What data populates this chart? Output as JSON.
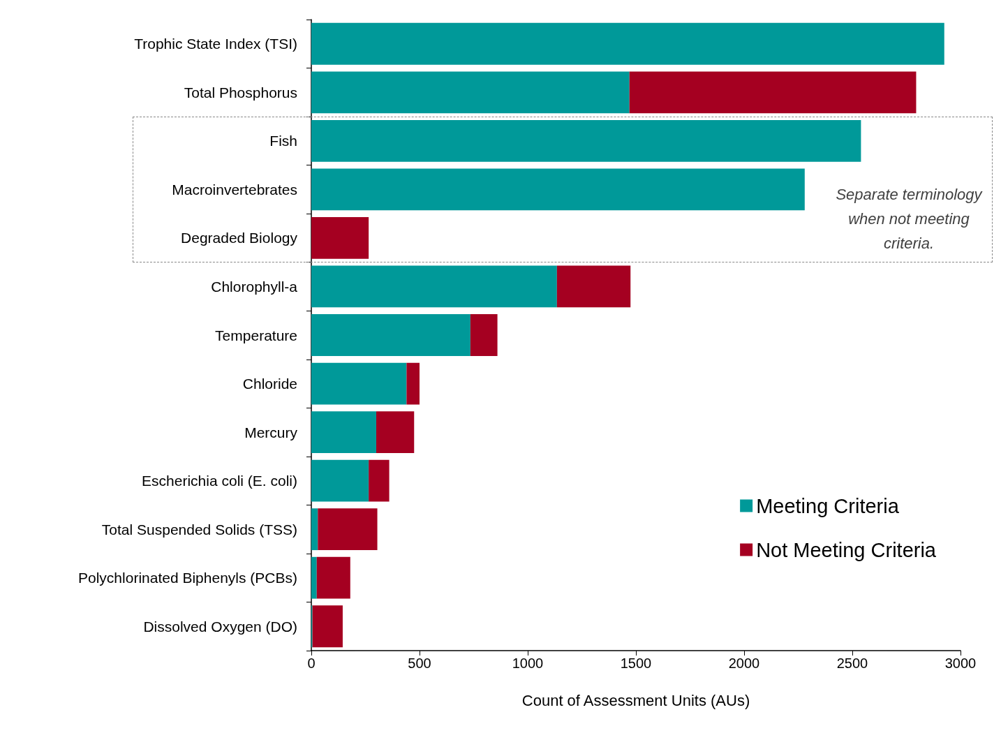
{
  "chart_data": {
    "type": "bar",
    "orientation": "horizontal",
    "stacked": true,
    "xlabel": "Count of Assessment Units (AUs)",
    "categories": [
      "Trophic State Index (TSI)",
      "Total Phosphorus",
      "Fish",
      "Macroinvertebrates",
      "Degraded Biology",
      "Chlorophyll-a",
      "Temperature",
      "Chloride",
      "Mercury",
      "Escherichia coli (E. coli)",
      "Total Suspended Solids (TSS)",
      "Polychlorinated Biphenyls (PCBs)",
      "Dissolved Oxygen (DO)"
    ],
    "series": [
      {
        "name": "Meeting Criteria",
        "color": "#009999",
        "values": [
          2925,
          1470,
          2540,
          2280,
          0,
          1135,
          735,
          440,
          300,
          265,
          30,
          25,
          5
        ]
      },
      {
        "name": "Not Meeting Criteria",
        "color": "#a50021",
        "values": [
          0,
          1325,
          0,
          0,
          265,
          340,
          125,
          60,
          175,
          95,
          275,
          155,
          140
        ]
      }
    ],
    "xlim": [
      0,
      3000
    ],
    "xticks": [
      0,
      500,
      1000,
      1500,
      2000,
      2500,
      3000
    ],
    "grid": false,
    "legend": "bottom right",
    "annotations": [
      "Separate terminology when not meeting criteria."
    ]
  }
}
